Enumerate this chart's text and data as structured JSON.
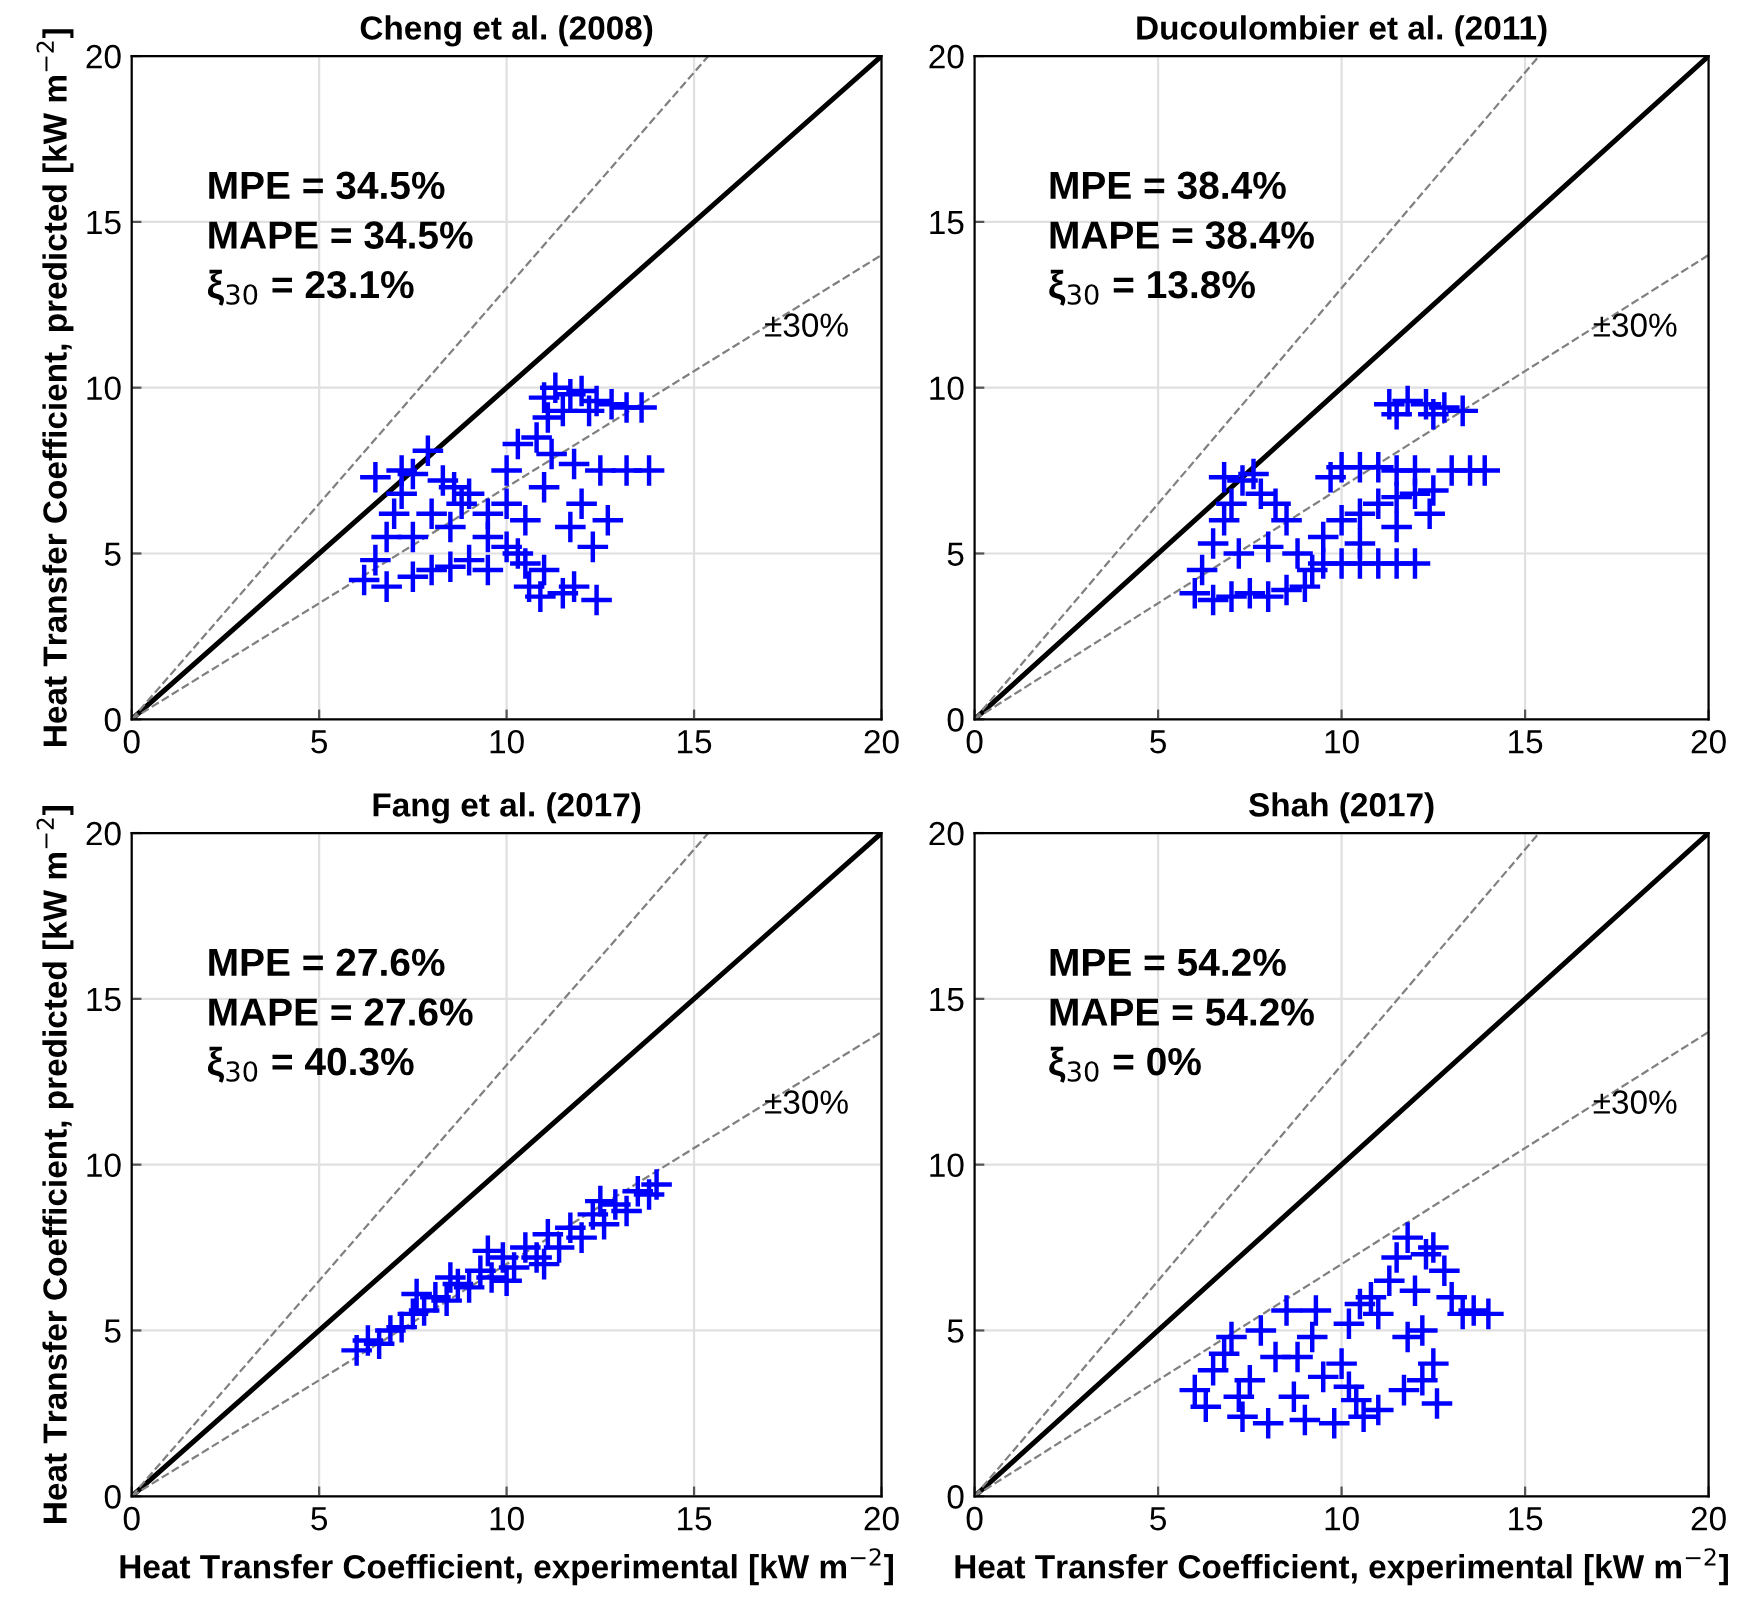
{
  "chart_data": [
    {
      "type": "scatter",
      "title": "Cheng et al. (2008)",
      "ylabel": "Heat Transfer Coefficient, predicted [kW m$^{−2}$]",
      "xlim": [
        0,
        20
      ],
      "ylim": [
        0,
        20
      ],
      "xticks": [
        0,
        5,
        10,
        15,
        20
      ],
      "yticks": [
        0,
        5,
        10,
        15,
        20
      ],
      "grid": true,
      "marker": "cross",
      "annotations": [
        "MPE = 34.5%",
        "MAPE = 34.5%",
        "ξ$_{30}$ = 23.1%",
        "±30%"
      ],
      "series": [
        {
          "type": "line",
          "color": "#000000",
          "line_style": "solid",
          "marker": "none",
          "x": [
            0,
            20
          ],
          "values": [
            0,
            20
          ]
        },
        {
          "type": "line",
          "color": "#808080",
          "line_style": "dashed",
          "marker": "none",
          "x": [
            0,
            15.38
          ],
          "values": [
            0,
            20
          ]
        },
        {
          "type": "line",
          "color": "#808080",
          "line_style": "dashed",
          "marker": "none",
          "x": [
            0,
            20
          ],
          "values": [
            0,
            14
          ]
        },
        {
          "type": "scatter",
          "color": "#0000ff",
          "x": [
            11,
            11.3,
            11.7,
            12,
            12.4,
            12.8,
            13.2,
            13.6,
            11.5,
            12.2,
            11.1,
            6.2,
            6.5,
            6.8,
            7,
            7.2,
            7.5,
            7.9,
            6.5,
            7.2,
            8.3,
            8.6,
            9,
            6.8,
            7.5,
            8,
            8.5,
            9,
            9.5,
            7.5,
            8.5,
            9.5,
            10,
            10.3,
            10.5,
            11,
            10.6,
            10.9,
            11.8,
            12.4,
            11.5,
            10,
            10,
            10.3,
            10.8,
            11.2,
            11.8,
            12.5,
            13.2,
            13.8,
            11,
            12,
            12.7,
            12.3,
            11.7,
            9.5,
            10.5,
            8,
            8.8
          ],
          "values": [
            9.7,
            10,
            9.8,
            9.9,
            9.6,
            9.5,
            9.4,
            9.4,
            9.3,
            9.3,
            9.1,
            4.2,
            4.8,
            5.5,
            6.2,
            6.8,
            7.4,
            8.1,
            7.3,
            7.5,
            7.2,
            7,
            6.8,
            4,
            4.3,
            4.5,
            4.6,
            4.8,
            4.5,
            5.5,
            5.8,
            5.5,
            5.2,
            5,
            4.7,
            4.5,
            4,
            3.7,
            4,
            3.6,
            3.8,
            6.5,
            7.5,
            8.3,
            8.5,
            8,
            7.7,
            7.5,
            7.5,
            7.5,
            7,
            6.5,
            6,
            5.2,
            5.8,
            6.2,
            6,
            6.2,
            6.5
          ]
        }
      ]
    },
    {
      "type": "scatter",
      "title": "Ducoulombier et al. (2011)",
      "xlim": [
        0,
        20
      ],
      "ylim": [
        0,
        20
      ],
      "xticks": [
        0,
        5,
        10,
        15,
        20
      ],
      "yticks": [
        0,
        5,
        10,
        15,
        20
      ],
      "grid": true,
      "marker": "cross",
      "annotations": [
        "MPE = 38.4%",
        "MAPE = 38.4%",
        "ξ$_{30}$ = 13.8%",
        "±30%"
      ],
      "series": [
        {
          "type": "line",
          "color": "#000000",
          "line_style": "solid",
          "marker": "none",
          "x": [
            0,
            20
          ],
          "values": [
            0,
            20
          ]
        },
        {
          "type": "line",
          "color": "#808080",
          "line_style": "dashed",
          "marker": "none",
          "x": [
            0,
            15.38
          ],
          "values": [
            0,
            20
          ]
        },
        {
          "type": "line",
          "color": "#808080",
          "line_style": "dashed",
          "marker": "none",
          "x": [
            0,
            20
          ],
          "values": [
            0,
            14
          ]
        },
        {
          "type": "scatter",
          "color": "#0000ff",
          "x": [
            11.3,
            11.8,
            12.3,
            12.8,
            13.3,
            11.5,
            12.5,
            6,
            6.5,
            7,
            7.5,
            8,
            8.5,
            9,
            6.2,
            6.5,
            6.8,
            7,
            7.3,
            7.6,
            7.8,
            8.2,
            8.5,
            6.8,
            7.2,
            8,
            8.8,
            9.2,
            9.5,
            10,
            10.5,
            11,
            11.5,
            12,
            9.5,
            10,
            10.5,
            11,
            11.5,
            12,
            12.5,
            9.7,
            10,
            10.5,
            11,
            11.5,
            12,
            12.5,
            13,
            13.5,
            13.9,
            10.5,
            11.5,
            12.4
          ],
          "values": [
            9.5,
            9.6,
            9.5,
            9.4,
            9.3,
            9.2,
            9.2,
            3.8,
            3.6,
            3.7,
            3.8,
            3.7,
            3.9,
            4,
            4.5,
            5.3,
            6,
            6.5,
            7.2,
            7.4,
            6.8,
            6.5,
            6,
            7.3,
            5,
            5.2,
            5,
            4.5,
            4.7,
            4.7,
            4.7,
            4.7,
            4.7,
            4.7,
            5.5,
            6,
            6.2,
            6.5,
            6.7,
            6.8,
            6.9,
            7.3,
            7.6,
            7.6,
            7.6,
            7.5,
            7.5,
            null,
            7.5,
            7.5,
            7.5,
            5.3,
            5.8,
            6.2
          ]
        }
      ]
    },
    {
      "type": "scatter",
      "title": "Fang et al. (2017)",
      "xlabel": "Heat Transfer Coefficient, experimental [kW m$^{−2}$]",
      "ylabel": "Heat Transfer Coefficient, predicted [kW m$^{−2}$]",
      "xlim": [
        0,
        20
      ],
      "ylim": [
        0,
        20
      ],
      "xticks": [
        0,
        5,
        10,
        15,
        20
      ],
      "yticks": [
        0,
        5,
        10,
        15,
        20
      ],
      "grid": true,
      "marker": "cross",
      "annotations": [
        "MPE = 27.6%",
        "MAPE = 27.6%",
        "ξ$_{30}$ = 40.3%",
        "±30%"
      ],
      "series": [
        {
          "type": "line",
          "color": "#000000",
          "line_style": "solid",
          "marker": "none",
          "x": [
            0,
            20
          ],
          "values": [
            0,
            20
          ]
        },
        {
          "type": "line",
          "color": "#808080",
          "line_style": "dashed",
          "marker": "none",
          "x": [
            0,
            15.38
          ],
          "values": [
            0,
            20
          ]
        },
        {
          "type": "line",
          "color": "#808080",
          "line_style": "dashed",
          "marker": "none",
          "x": [
            0,
            20
          ],
          "values": [
            0,
            14
          ]
        },
        {
          "type": "scatter",
          "color": "#0000ff",
          "x": [
            6,
            6.3,
            6.6,
            6.9,
            7.2,
            7.5,
            7.8,
            8.1,
            8.4,
            8.7,
            9,
            9.3,
            9.6,
            9.9,
            10.2,
            10.5,
            10.8,
            11.1,
            11.4,
            11.7,
            12,
            12.3,
            12.6,
            12.9,
            13.2,
            13.5,
            13.8,
            14,
            7.6,
            9.5,
            10,
            11,
            12.5,
            8.5
          ],
          "values": [
            4.4,
            4.7,
            4.6,
            5,
            5.1,
            5.5,
            5.6,
            6,
            5.9,
            6.4,
            6.3,
            6.8,
            6.6,
            7.2,
            6.9,
            7.5,
            7.2,
            7.9,
            7.5,
            8.1,
            7.8,
            8.5,
            8.2,
            8.8,
            8.6,
            9.2,
            9.1,
            9.4,
            6.1,
            7.4,
            6.5,
            7,
            8.9,
            6.6
          ]
        }
      ]
    },
    {
      "type": "scatter",
      "title": "Shah (2017)",
      "xlabel": "Heat Transfer Coefficient, experimental [kW m$^{−2}$]",
      "xlim": [
        0,
        20
      ],
      "ylim": [
        0,
        20
      ],
      "xticks": [
        0,
        5,
        10,
        15,
        20
      ],
      "yticks": [
        0,
        5,
        10,
        15,
        20
      ],
      "grid": true,
      "marker": "cross",
      "annotations": [
        "MPE = 54.2%",
        "MAPE = 54.2%",
        "ξ$_{30}$ = 0%",
        "±30%"
      ],
      "series": [
        {
          "type": "line",
          "color": "#000000",
          "line_style": "solid",
          "marker": "none",
          "x": [
            0,
            20
          ],
          "values": [
            0,
            20
          ]
        },
        {
          "type": "line",
          "color": "#808080",
          "line_style": "dashed",
          "marker": "none",
          "x": [
            0,
            15.38
          ],
          "values": [
            0,
            20
          ]
        },
        {
          "type": "line",
          "color": "#808080",
          "line_style": "dashed",
          "marker": "none",
          "x": [
            0,
            20
          ],
          "values": [
            0,
            14
          ]
        },
        {
          "type": "scatter",
          "color": "#0000ff",
          "x": [
            6,
            6.3,
            6.5,
            6.8,
            7,
            7.3,
            7.5,
            7.8,
            8,
            8.2,
            8.5,
            8.7,
            9,
            9.2,
            9.5,
            9.8,
            10,
            10.2,
            10.4,
            10.6,
            10.5,
            10.8,
            11,
            11,
            11.3,
            11.5,
            11.8,
            12,
            12.2,
            12.3,
            12.5,
            12.5,
            12.6,
            12.8,
            13,
            13.3,
            13.6,
            14,
            11.7,
            12.2,
            10.2,
            8.8,
            7.2,
            9.3,
            11.8
          ],
          "values": [
            3.2,
            2.7,
            3.8,
            4.3,
            4.8,
            2.4,
            3.5,
            5,
            2.2,
            4.2,
            5.6,
            3,
            2.3,
            4.8,
            3.6,
            2.2,
            4,
            5.2,
            2.9,
            2.4,
            5.8,
            6,
            5.5,
            2.6,
            6.5,
            7.2,
            7.8,
            6.2,
            5,
            7.3,
            4,
            7.5,
            2.8,
            6.8,
            6,
            5.5,
            5.6,
            5.5,
            3.2,
            3.5,
            3.3,
            4.2,
            3,
            5.6,
            4.8
          ]
        }
      ]
    }
  ]
}
